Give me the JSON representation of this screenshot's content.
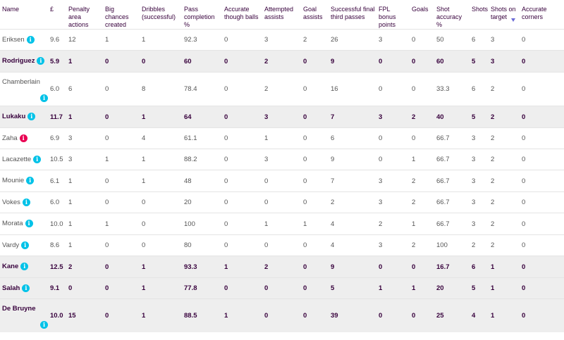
{
  "headers": [
    "Name",
    "£",
    "Penalty area actions",
    "Big chances created",
    "Dribbles (successful)",
    "Pass completion %",
    "Accurate though balls",
    "Attempted assists",
    "Goal assists",
    "Successful final third passes",
    "FPL bonus points",
    "Goals",
    "Shot accuracy %",
    "Shots",
    "Shots on target",
    "Accurate corners"
  ],
  "rows": [
    {
      "name": "Eriksen",
      "info_color": "cyan",
      "highlighted": false,
      "cells": [
        "9.6",
        "12",
        "1",
        "1",
        "92.3",
        "0",
        "3",
        "2",
        "26",
        "3",
        "0",
        "50",
        "6",
        "3",
        "0"
      ]
    },
    {
      "name": "Rodriguez",
      "info_color": "cyan",
      "highlighted": true,
      "cells": [
        "5.9",
        "1",
        "0",
        "0",
        "60",
        "0",
        "2",
        "0",
        "9",
        "0",
        "0",
        "60",
        "5",
        "3",
        "0"
      ]
    },
    {
      "name": "Chamberlain",
      "info_color": "cyan",
      "highlighted": false,
      "cells": [
        "6.0",
        "6",
        "0",
        "8",
        "78.4",
        "0",
        "2",
        "0",
        "16",
        "0",
        "0",
        "33.3",
        "6",
        "2",
        "0"
      ]
    },
    {
      "name": "Lukaku",
      "info_color": "cyan",
      "highlighted": true,
      "cells": [
        "11.7",
        "1",
        "0",
        "1",
        "64",
        "0",
        "3",
        "0",
        "7",
        "3",
        "2",
        "40",
        "5",
        "2",
        "0"
      ]
    },
    {
      "name": "Zaha",
      "info_color": "red",
      "highlighted": false,
      "cells": [
        "6.9",
        "3",
        "0",
        "4",
        "61.1",
        "0",
        "1",
        "0",
        "6",
        "0",
        "0",
        "66.7",
        "3",
        "2",
        "0"
      ]
    },
    {
      "name": "Lacazette",
      "info_color": "cyan",
      "highlighted": false,
      "cells": [
        "10.5",
        "3",
        "1",
        "1",
        "88.2",
        "0",
        "3",
        "0",
        "9",
        "0",
        "1",
        "66.7",
        "3",
        "2",
        "0"
      ]
    },
    {
      "name": "Mounie",
      "info_color": "cyan",
      "highlighted": false,
      "cells": [
        "6.1",
        "1",
        "0",
        "1",
        "48",
        "0",
        "0",
        "0",
        "7",
        "3",
        "2",
        "66.7",
        "3",
        "2",
        "0"
      ]
    },
    {
      "name": "Vokes",
      "info_color": "cyan",
      "highlighted": false,
      "cells": [
        "6.0",
        "1",
        "0",
        "0",
        "20",
        "0",
        "0",
        "0",
        "2",
        "3",
        "2",
        "66.7",
        "3",
        "2",
        "0"
      ]
    },
    {
      "name": "Morata",
      "info_color": "cyan",
      "highlighted": false,
      "cells": [
        "10.0",
        "1",
        "1",
        "0",
        "100",
        "0",
        "1",
        "1",
        "4",
        "2",
        "1",
        "66.7",
        "3",
        "2",
        "0"
      ]
    },
    {
      "name": "Vardy",
      "info_color": "cyan",
      "highlighted": false,
      "cells": [
        "8.6",
        "1",
        "0",
        "0",
        "80",
        "0",
        "0",
        "0",
        "4",
        "3",
        "2",
        "100",
        "2",
        "2",
        "0"
      ]
    },
    {
      "name": "Kane",
      "info_color": "cyan",
      "highlighted": true,
      "cells": [
        "12.5",
        "2",
        "0",
        "1",
        "93.3",
        "1",
        "2",
        "0",
        "9",
        "0",
        "0",
        "16.7",
        "6",
        "1",
        "0"
      ]
    },
    {
      "name": "Salah",
      "info_color": "cyan",
      "highlighted": true,
      "cells": [
        "9.1",
        "0",
        "0",
        "1",
        "77.8",
        "0",
        "0",
        "0",
        "5",
        "1",
        "1",
        "20",
        "5",
        "1",
        "0"
      ]
    },
    {
      "name": "De Bruyne",
      "info_color": "cyan",
      "highlighted": true,
      "cells": [
        "10.0",
        "15",
        "0",
        "1",
        "88.5",
        "1",
        "0",
        "0",
        "39",
        "0",
        "0",
        "25",
        "4",
        "1",
        "0"
      ]
    }
  ],
  "sorted_column": "Shots on target",
  "info_icon": "info-icon",
  "colors": {
    "text": "#37003c",
    "info_cyan": "#00c2e8",
    "info_red": "#e90052",
    "highlight_row": "#eeeeee"
  }
}
